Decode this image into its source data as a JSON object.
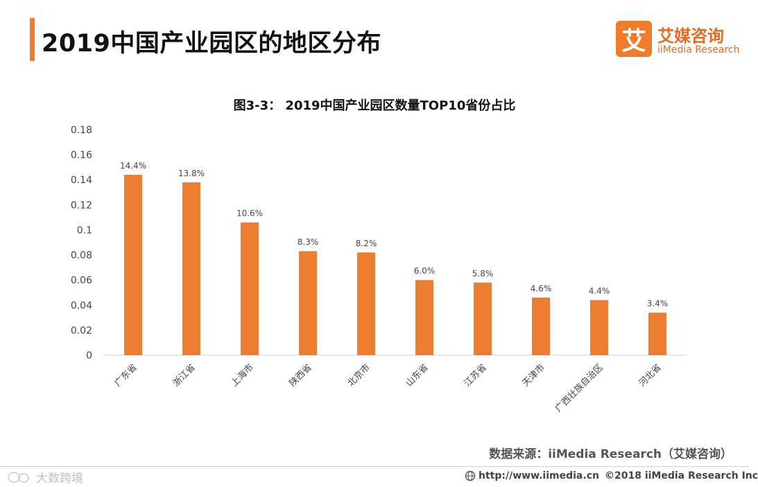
{
  "header": {
    "title": "2019中国产业园区的地区分布",
    "logo_mark": "艾",
    "logo_cn": "艾媒咨询",
    "logo_en": "iiMedia Research"
  },
  "chart_data": {
    "type": "bar",
    "title": "图3-3：  2019中国产业园区数量TOP10省份占比",
    "categories": [
      "广东省",
      "浙江省",
      "上海市",
      "陕西省",
      "北京市",
      "山东省",
      "江苏省",
      "天津市",
      "广西壮族自治区",
      "河北省"
    ],
    "values": [
      0.144,
      0.138,
      0.106,
      0.083,
      0.082,
      0.06,
      0.058,
      0.046,
      0.044,
      0.034
    ],
    "data_labels": [
      "14.4%",
      "13.8%",
      "10.6%",
      "8.3%",
      "8.2%",
      "6.0%",
      "5.8%",
      "4.6%",
      "4.4%",
      "3.4%"
    ],
    "yticks": [
      "0",
      "0.02",
      "0.04",
      "0.06",
      "0.08",
      "0.1",
      "0.12",
      "0.14",
      "0.16",
      "0.18"
    ],
    "ylim": [
      0,
      0.18
    ],
    "xlabel": "",
    "ylabel": "",
    "grid": false,
    "bar_color": "#ed7d31"
  },
  "source": "数据来源：iiMedia Research（艾媒咨询）",
  "footer": {
    "watermark": "大数跨境",
    "url": "http://www.iimedia.cn",
    "copyright": "©2018  iiMedia Research  Inc"
  }
}
